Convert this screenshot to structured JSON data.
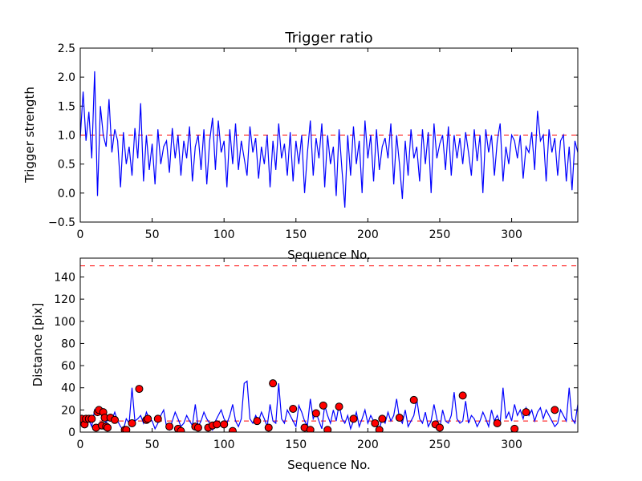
{
  "chart_data": [
    {
      "type": "line",
      "title": "Trigger ratio",
      "xlabel": "Sequence No.",
      "ylabel": "Trigger strength",
      "xlim": [
        0,
        346
      ],
      "ylim": [
        -0.5,
        2.5
      ],
      "xticks": [
        0,
        50,
        100,
        150,
        200,
        250,
        300
      ],
      "xtick_labels": [
        "0",
        "50",
        "100",
        "150",
        "200",
        "250",
        "300"
      ],
      "yticks": [
        -0.5,
        0.0,
        0.5,
        1.0,
        1.5,
        2.0,
        2.5
      ],
      "ytick_labels": [
        "−0.5",
        "0.0",
        "0.5",
        "1.0",
        "1.5",
        "2.0",
        "2.5"
      ],
      "threshold": 1.0,
      "colors": {
        "series": "#0000ff",
        "threshold": "#ff0000"
      },
      "series": [
        {
          "name": "trigger strength",
          "x_start": 0,
          "x_step": 2,
          "values": [
            0.95,
            1.75,
            0.9,
            1.4,
            0.6,
            2.1,
            -0.05,
            1.5,
            1.0,
            0.8,
            1.62,
            0.7,
            1.1,
            0.9,
            0.1,
            1.05,
            0.5,
            0.8,
            0.3,
            1.12,
            0.6,
            1.55,
            0.2,
            1.0,
            0.4,
            0.85,
            0.15,
            1.1,
            0.5,
            0.8,
            0.9,
            0.35,
            1.12,
            0.6,
            1.0,
            0.3,
            0.9,
            0.6,
            1.15,
            0.2,
            0.8,
            1.0,
            0.4,
            1.1,
            0.15,
            0.9,
            1.3,
            0.4,
            1.25,
            0.7,
            0.9,
            0.1,
            1.1,
            0.5,
            1.2,
            0.4,
            0.9,
            0.6,
            0.3,
            1.15,
            0.7,
            0.95,
            0.25,
            0.8,
            0.5,
            1.0,
            0.1,
            0.9,
            0.4,
            1.2,
            0.6,
            0.85,
            0.3,
            1.05,
            0.2,
            0.9,
            0.5,
            1.0,
            0.0,
            0.7,
            1.25,
            0.3,
            0.95,
            0.6,
            1.2,
            0.1,
            1.0,
            0.5,
            0.8,
            -0.05,
            1.1,
            0.4,
            -0.25,
            1.0,
            0.3,
            1.15,
            0.5,
            0.9,
            0.0,
            1.25,
            0.6,
            1.0,
            0.2,
            1.1,
            0.4,
            0.8,
            0.95,
            0.6,
            1.2,
            0.15,
            1.0,
            0.5,
            -0.1,
            0.9,
            0.3,
            1.1,
            0.6,
            0.8,
            0.2,
            1.1,
            0.5,
            1.05,
            0.0,
            1.2,
            0.6,
            0.85,
            1.0,
            0.4,
            1.15,
            0.3,
            1.0,
            0.6,
            0.95,
            0.5,
            1.05,
            0.7,
            0.3,
            1.1,
            0.55,
            1.0,
            0.0,
            1.1,
            0.7,
            1.0,
            0.3,
            0.9,
            1.2,
            0.2,
            0.8,
            0.5,
            1.0,
            0.9,
            0.6,
            1.0,
            0.25,
            0.8,
            0.7,
            1.05,
            0.4,
            1.42,
            0.9,
            1.0,
            0.2,
            1.1,
            0.7,
            0.95,
            0.3,
            0.9,
            1.0,
            0.2,
            0.8,
            0.05,
            0.9,
            0.7,
            0.8,
            0.95
          ]
        }
      ]
    },
    {
      "type": "line",
      "title": "",
      "xlabel": "Sequence No.",
      "ylabel": "Distance [pix]",
      "xlim": [
        0,
        346
      ],
      "ylim": [
        0,
        157
      ],
      "xticks": [
        0,
        50,
        100,
        150,
        200,
        250,
        300
      ],
      "xtick_labels": [
        "0",
        "50",
        "100",
        "150",
        "200",
        "250",
        "300"
      ],
      "yticks": [
        0,
        20,
        40,
        60,
        80,
        100,
        120,
        140
      ],
      "ytick_labels": [
        "0",
        "20",
        "40",
        "60",
        "80",
        "100",
        "120",
        "140"
      ],
      "thresholds": [
        10,
        150
      ],
      "colors": {
        "series": "#0000ff",
        "threshold": "#ff0000",
        "marker_fill": "#ff0000",
        "marker_edge": "#000000"
      },
      "series": [
        {
          "name": "distance",
          "x_start": 0,
          "x_step": 2,
          "values": [
            10,
            12,
            8,
            11,
            5,
            20,
            15,
            17,
            12,
            8,
            15,
            11,
            18,
            10,
            5,
            2,
            12,
            8,
            40,
            10,
            12,
            15,
            8,
            18,
            12,
            10,
            3,
            8,
            15,
            20,
            5,
            2,
            10,
            18,
            12,
            5,
            8,
            15,
            10,
            6,
            25,
            5,
            10,
            18,
            12,
            8,
            2,
            10,
            15,
            20,
            12,
            8,
            15,
            25,
            10,
            5,
            12,
            44,
            46,
            12,
            8,
            15,
            10,
            18,
            12,
            5,
            25,
            10,
            8,
            44,
            12,
            8,
            20,
            15,
            10,
            5,
            24,
            18,
            10,
            6,
            30,
            12,
            18,
            10,
            3,
            24,
            15,
            8,
            20,
            10,
            25,
            12,
            8,
            15,
            3,
            10,
            18,
            5,
            12,
            20,
            8,
            15,
            10,
            5,
            3,
            12,
            8,
            18,
            10,
            15,
            30,
            12,
            8,
            20,
            5,
            10,
            15,
            30,
            12,
            8,
            18,
            5,
            10,
            25,
            12,
            3,
            20,
            10,
            8,
            15,
            36,
            12,
            8,
            10,
            28,
            8,
            15,
            12,
            5,
            10,
            18,
            12,
            5,
            20,
            10,
            15,
            8,
            40,
            12,
            18,
            10,
            25,
            15,
            20,
            12,
            22,
            15,
            20,
            10,
            18,
            22,
            12,
            20,
            15,
            10,
            5,
            8,
            20,
            15,
            10,
            40,
            12,
            8,
            25,
            15,
            22,
            18
          ]
        },
        {
          "name": "marked points",
          "x": [
            1,
            3,
            4,
            6,
            8,
            11,
            12,
            13,
            15,
            16,
            17,
            18,
            19,
            21,
            24,
            31,
            32,
            36,
            41,
            46,
            47,
            54,
            62,
            68,
            70,
            80,
            82,
            89,
            92,
            95,
            100,
            106,
            123,
            131,
            134,
            148,
            156,
            160,
            164,
            169,
            172,
            180,
            190,
            205,
            208,
            210,
            222,
            232,
            247,
            250,
            266,
            290,
            302,
            310,
            330
          ],
          "y": [
            12,
            7,
            12,
            12,
            12,
            4,
            18,
            20,
            6,
            18,
            13,
            5,
            4,
            13,
            11,
            2,
            2,
            8,
            39,
            11,
            12,
            12,
            5,
            3,
            1,
            5,
            4,
            4,
            6,
            7,
            7,
            1,
            10,
            4,
            44,
            21,
            4,
            2,
            17,
            24,
            2,
            23,
            12,
            8,
            2,
            12,
            13,
            29,
            7,
            4,
            33,
            8,
            3,
            18,
            20
          ]
        }
      ]
    }
  ]
}
